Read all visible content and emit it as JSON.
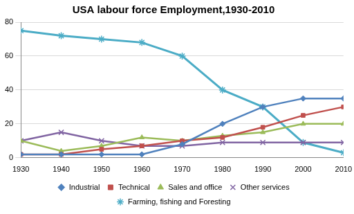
{
  "chart_data": {
    "type": "line",
    "title": "USA labour force Employment,1930-2010",
    "categories": [
      "1930",
      "1940",
      "1950",
      "1960",
      "1970",
      "1980",
      "1990",
      "2000",
      "2010"
    ],
    "series": [
      {
        "name": "Industrial",
        "color": "#4f81bd",
        "marker": "diamond",
        "values": [
          2,
          2,
          2,
          2,
          8,
          20,
          30,
          35,
          35
        ]
      },
      {
        "name": "Technical",
        "color": "#c0504d",
        "marker": "square",
        "values": [
          2,
          2,
          5,
          7,
          10,
          12,
          18,
          25,
          30
        ]
      },
      {
        "name": "Sales and office",
        "color": "#9bbb59",
        "marker": "triangle",
        "values": [
          10,
          4,
          7,
          12,
          10,
          13,
          15,
          20,
          20
        ]
      },
      {
        "name": "Other services",
        "color": "#8064a2",
        "marker": "x",
        "values": [
          10,
          15,
          10,
          7,
          7,
          9,
          9,
          9,
          9
        ]
      },
      {
        "name": "Farming, fishing and Foresting",
        "color": "#4bacc6",
        "marker": "star",
        "values": [
          75,
          72,
          70,
          68,
          60,
          40,
          30,
          9,
          3
        ]
      }
    ],
    "ylim": [
      0,
      80
    ],
    "yticks": [
      0,
      20,
      40,
      60,
      80
    ],
    "grid": true,
    "legend": "bottom"
  }
}
